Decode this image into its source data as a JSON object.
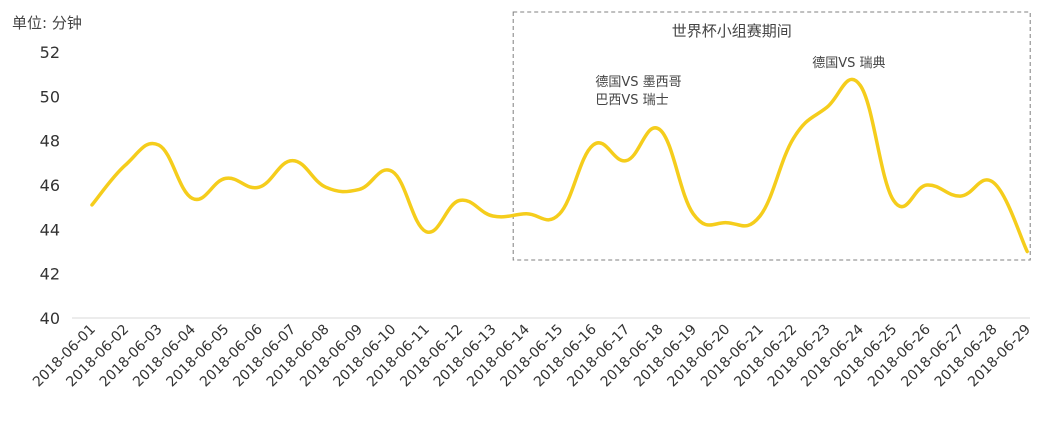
{
  "chart_data": {
    "type": "line",
    "unit_label": "单位: 分钟",
    "categories": [
      "2018-06-01",
      "2018-06-02",
      "2018-06-03",
      "2018-06-04",
      "2018-06-05",
      "2018-06-06",
      "2018-06-07",
      "2018-06-08",
      "2018-06-09",
      "2018-06-10",
      "2018-06-11",
      "2018-06-12",
      "2018-06-13",
      "2018-06-14",
      "2018-06-15",
      "2018-06-16",
      "2018-06-17",
      "2018-06-18",
      "2018-06-19",
      "2018-06-20",
      "2018-06-21",
      "2018-06-22",
      "2018-06-23",
      "2018-06-24",
      "2018-06-25",
      "2018-06-26",
      "2018-06-27",
      "2018-06-28",
      "2018-06-29"
    ],
    "values": [
      45.1,
      46.9,
      47.8,
      45.4,
      46.3,
      45.9,
      47.1,
      45.9,
      45.8,
      46.6,
      43.9,
      45.3,
      44.6,
      44.7,
      44.7,
      47.8,
      47.1,
      48.5,
      44.7,
      44.3,
      44.6,
      48.1,
      49.5,
      50.5,
      45.3,
      46.0,
      45.5,
      46.1,
      43.0
    ],
    "ylim": [
      40,
      52
    ],
    "yticks": [
      "40",
      "42",
      "44",
      "46",
      "48",
      "50",
      "52"
    ],
    "line_color": "#F5CD1C",
    "highlight": {
      "title": "世界杯小组赛期间",
      "from": "2018-06-14",
      "to": "2018-06-29"
    },
    "annotations": [
      {
        "lines": [
          "德国VS 墨西哥",
          "巴西VS 瑞士"
        ],
        "at": "2018-06-17"
      },
      {
        "lines": [
          "德国VS 瑞典"
        ],
        "at": "2018-06-24"
      }
    ]
  }
}
